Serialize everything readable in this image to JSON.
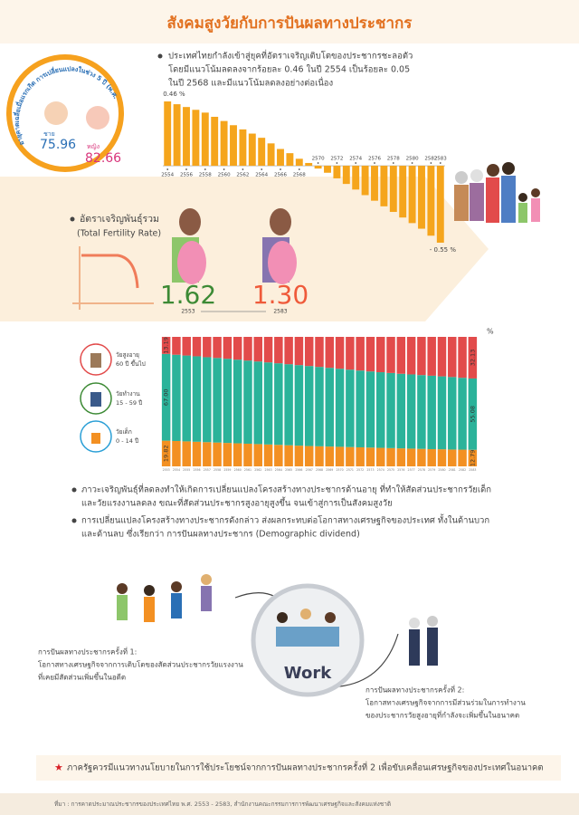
{
  "title": "สังคมสูงวัยกับการปันผลทางประชากร",
  "life_expectancy": {
    "caption": "อายุคาดเฉลี่ยเมื่อแรกเกิด การเปลี่ยนแปลงในช่วง 5 ปี (พ.ศ. 2568-2572)",
    "male_label": "ชาย",
    "male_value": 75.96,
    "female_label": "หญิง",
    "female_value": 82.66
  },
  "growth_text": [
    "ประเทศไทยกำลังเข้าสู่ยุคที่อัตราเจริญเติบโตของประชากรชะลอตัว",
    "โดยมีแนวโน้มลดลงจากร้อยละ 0.46 ในปี 2554 เป็นร้อยละ 0.05",
    "ในปี 2568 และมีแนวโน้มลดลงอย่างต่อเนื่อง"
  ],
  "fertility": {
    "heading": "อัตราเจริญพันธุ์รวม",
    "subheading": "(Total Fertility Rate)",
    "values": [
      "1.62",
      "1.30"
    ],
    "years": [
      2553,
      2583
    ]
  },
  "chart_data": [
    {
      "type": "bar",
      "color": "#f5a51c",
      "categories": [
        2554,
        null,
        2556,
        null,
        2558,
        null,
        2560,
        null,
        2562,
        null,
        2564,
        null,
        2566,
        null,
        2568,
        null,
        2570,
        null,
        2572,
        null,
        2574,
        null,
        2576,
        null,
        2578,
        null,
        2580,
        null,
        2582,
        2583
      ],
      "values": [
        0.46,
        0.44,
        0.42,
        0.4,
        0.38,
        0.35,
        0.32,
        0.29,
        0.26,
        0.23,
        0.2,
        0.16,
        0.12,
        0.09,
        0.05,
        0.02,
        -0.02,
        -0.05,
        -0.09,
        -0.13,
        -0.17,
        -0.21,
        -0.25,
        -0.29,
        -0.33,
        -0.37,
        -0.41,
        -0.45,
        -0.5,
        -0.55
      ],
      "value_labels": [
        "0.46 %",
        null,
        null,
        null,
        null,
        null,
        null,
        null,
        null,
        null,
        null,
        null,
        null,
        null,
        null,
        null,
        null,
        null,
        null,
        null,
        null,
        null,
        null,
        null,
        null,
        null,
        null,
        null,
        null,
        "- 0.55 %"
      ],
      "ylim": [
        -0.55,
        0.46
      ]
    },
    {
      "type": "stacked_bar",
      "unit_label": "%",
      "ylim": [
        0,
        100
      ],
      "categories": [
        2553,
        2554,
        2555,
        2556,
        2557,
        2558,
        2559,
        2560,
        2561,
        2562,
        2563,
        2564,
        2565,
        2566,
        2567,
        2568,
        2569,
        2570,
        2571,
        2572,
        2573,
        2574,
        2575,
        2576,
        2577,
        2578,
        2579,
        2580,
        2581,
        2582,
        2583
      ],
      "series": [
        {
          "name": "วัยเด็ก",
          "range": "0 - 14 ปี",
          "color": "#f39022",
          "values": [
            19.82,
            19.6,
            19.3,
            19.0,
            18.7,
            18.4,
            18.1,
            17.8,
            17.5,
            17.2,
            16.9,
            16.6,
            16.3,
            16.0,
            15.7,
            15.5,
            15.3,
            15.1,
            14.9,
            14.7,
            14.5,
            14.3,
            14.1,
            13.9,
            13.7,
            13.5,
            13.3,
            13.2,
            13.0,
            12.9,
            12.79
          ],
          "value_labels": [
            "19.82",
            null,
            null,
            null,
            null,
            null,
            null,
            null,
            null,
            null,
            null,
            null,
            null,
            null,
            null,
            null,
            null,
            null,
            null,
            null,
            null,
            null,
            null,
            null,
            null,
            null,
            null,
            null,
            null,
            null,
            "12.79"
          ]
        },
        {
          "name": "วัยทำงาน",
          "range": "15 - 59 ปี",
          "color": "#2bb39a",
          "values": [
            67.0,
            66.6,
            66.3,
            66.0,
            65.6,
            65.3,
            65.0,
            64.6,
            64.2,
            63.8,
            63.4,
            63.0,
            62.6,
            62.2,
            61.8,
            61.3,
            60.8,
            60.3,
            59.8,
            59.3,
            58.8,
            58.4,
            58.0,
            57.6,
            57.3,
            57.0,
            56.7,
            56.3,
            56.0,
            55.5,
            55.08
          ],
          "value_labels": [
            "67.00",
            null,
            null,
            null,
            null,
            null,
            null,
            null,
            null,
            null,
            null,
            null,
            null,
            null,
            null,
            null,
            null,
            null,
            null,
            null,
            null,
            null,
            null,
            null,
            null,
            null,
            null,
            null,
            null,
            null,
            "55.08"
          ]
        },
        {
          "name": "วัยสูงอายุ",
          "range": "60 ปี ขึ้นไป",
          "color": "#e24b4b",
          "values": [
            13.19,
            13.8,
            14.4,
            15.0,
            15.7,
            16.3,
            16.9,
            17.6,
            18.3,
            19.0,
            19.7,
            20.4,
            21.1,
            21.8,
            22.5,
            23.2,
            23.9,
            24.6,
            25.3,
            26.0,
            26.7,
            27.3,
            27.9,
            28.5,
            29.0,
            29.5,
            30.0,
            30.5,
            31.0,
            31.6,
            32.13
          ],
          "value_labels": [
            "13.19",
            null,
            null,
            null,
            null,
            null,
            null,
            null,
            null,
            null,
            null,
            null,
            null,
            null,
            null,
            null,
            null,
            null,
            null,
            null,
            null,
            null,
            null,
            null,
            null,
            null,
            null,
            null,
            null,
            null,
            "32.13"
          ]
        }
      ]
    }
  ],
  "structure_text": [
    [
      "ภาวะเจริญพันธุ์ที่ลดลงทำให้เกิดการเปลี่ยนแปลงโครงสร้างทางประชากรด้านอายุ ที่ทำให้สัดส่วนประชากรวัยเด็ก",
      "และวัยแรงงานลดลง ขณะที่สัดส่วนประชากรสูงอายุสูงขึ้น จนเข้าสู่การเป็นสังคมสูงวัย"
    ],
    [
      "การเปลี่ยนแปลงโครงสร้างทางประชากรดังกล่าว ส่งผลกระทบต่อโอกาสทางเศรษฐกิจของประเทศ ทั้งในด้านบวก",
      "และด้านลบ ซึ่งเรียกว่า การปันผลทางประชากร (Demographic dividend)"
    ]
  ],
  "work_label": "Work",
  "dividend_1": [
    "การปันผลทางประชากรครั้งที่ 1:",
    "โอกาสทางเศรษฐกิจจากการเติบโตของสัดส่วนประชากรวัยแรงงาน",
    "ที่เคยมีสัดส่วนเพิ่มขึ้นในอดีต"
  ],
  "dividend_2": [
    "การปันผลทางประชากรครั้งที่ 2:",
    "โอกาสทางเศรษฐกิจจากการมีส่วนร่วมในการทำงาน",
    "ของประชากรวัยสูงอายุที่กำลังจะเพิ่มขึ้นในอนาคต"
  ],
  "recommendation": "ภาครัฐควรมีแนวทางนโยบายในการใช้ประโยชน์จากการปันผลทางประชากรครั้งที่ 2 เพื่อขับเคลื่อนเศรษฐกิจของประเทศในอนาคต",
  "source": "ที่มา : การคาดประมาณประชากรของประเทศไทย พ.ศ. 2553 - 2583, สำนักงานคณะกรรมการการพัฒนาเศรษฐกิจและสังคมแห่งชาติ"
}
